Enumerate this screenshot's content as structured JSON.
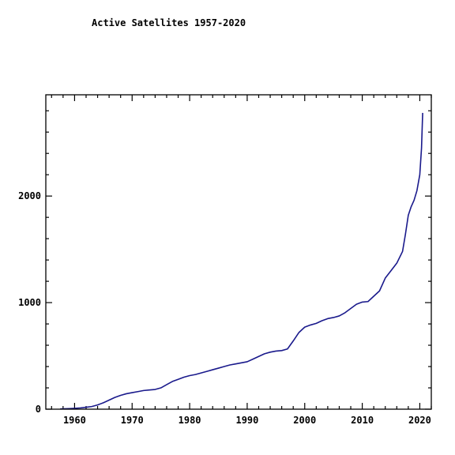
{
  "chart_data": {
    "type": "line",
    "title": "Active Satellites 1957-2020",
    "xlabel": "",
    "ylabel": "",
    "xlim": [
      1955,
      2022
    ],
    "ylim": [
      0,
      2950
    ],
    "x_ticks": [
      1960,
      1970,
      1980,
      1990,
      2000,
      2010,
      2020
    ],
    "y_ticks": [
      0,
      1000,
      2000
    ],
    "grid": false,
    "series": [
      {
        "color": "#1a1a8c",
        "x": [
          1957.5,
          1958,
          1959,
          1960,
          1961,
          1962,
          1963,
          1964,
          1965,
          1966,
          1967,
          1968,
          1969,
          1970,
          1971,
          1972,
          1973,
          1974,
          1975,
          1976,
          1977,
          1978,
          1979,
          1980,
          1981,
          1982,
          1983,
          1984,
          1985,
          1986,
          1987,
          1988,
          1989,
          1990,
          1991,
          1992,
          1993,
          1994,
          1995,
          1996,
          1997,
          1998,
          1999,
          2000,
          2001,
          2002,
          2003,
          2004,
          2005,
          2006,
          2007,
          2008,
          2009,
          2010,
          2011,
          2012,
          2013,
          2014,
          2015,
          2016,
          2017,
          2017.5,
          2018,
          2018.5,
          2019,
          2019.5,
          2020,
          2020.3,
          2020.5
        ],
        "y": [
          2,
          3,
          5,
          8,
          12,
          18,
          25,
          40,
          60,
          85,
          110,
          130,
          145,
          155,
          165,
          175,
          180,
          185,
          200,
          230,
          260,
          280,
          300,
          315,
          325,
          340,
          355,
          370,
          385,
          400,
          415,
          425,
          435,
          445,
          470,
          495,
          520,
          535,
          545,
          550,
          565,
          640,
          720,
          770,
          790,
          805,
          830,
          850,
          860,
          875,
          905,
          945,
          985,
          1005,
          1010,
          1060,
          1110,
          1230,
          1300,
          1370,
          1480,
          1640,
          1820,
          1900,
          1960,
          2050,
          2200,
          2450,
          2780
        ]
      }
    ]
  }
}
